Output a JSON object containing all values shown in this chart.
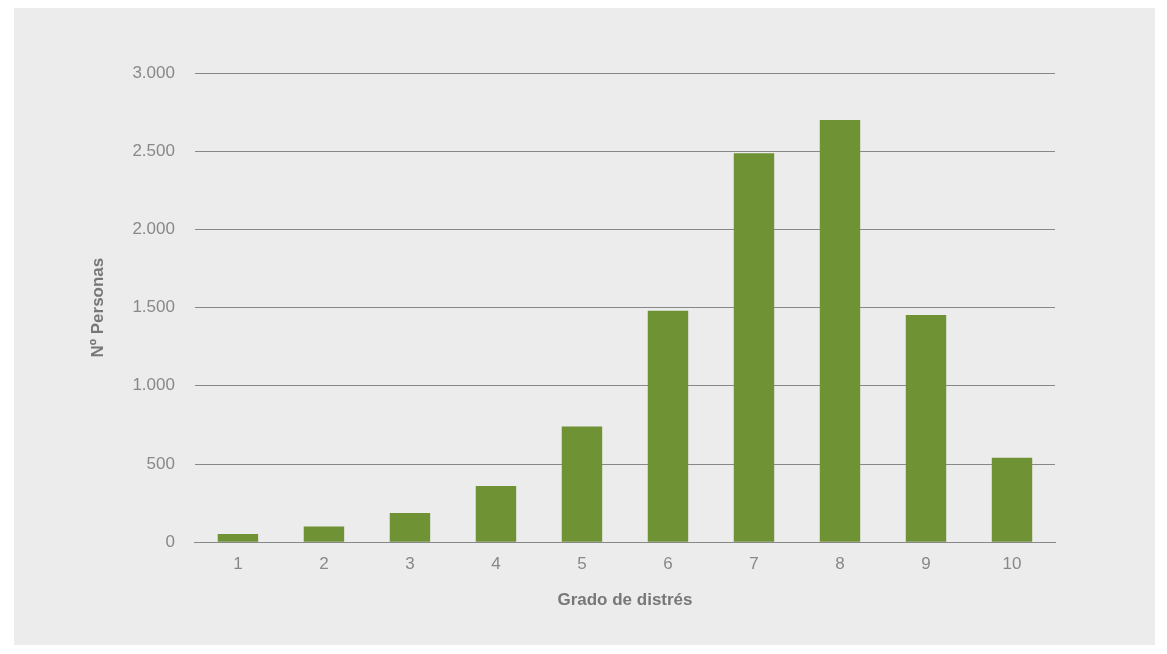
{
  "chart_data": {
    "type": "bar",
    "xlabel": "Grado de distrés",
    "ylabel": "Nº Personas",
    "categories": [
      "1",
      "2",
      "3",
      "4",
      "5",
      "6",
      "7",
      "8",
      "9",
      "10"
    ],
    "values": [
      53,
      100,
      187,
      360,
      740,
      1480,
      2487,
      2700,
      1453,
      540
    ],
    "color": "#6e9234",
    "ylim": [
      0,
      3000
    ],
    "yticks": [
      0,
      500,
      {
        "value": 1000,
        "label": "1.000"
      },
      {
        "value": 1500,
        "label": "1.500"
      },
      {
        "value": 2000,
        "label": "2.000"
      },
      {
        "value": 2500,
        "label": "2.500"
      },
      {
        "value": 3000,
        "label": "3.000"
      }
    ],
    "grid": "y",
    "legend": false
  }
}
